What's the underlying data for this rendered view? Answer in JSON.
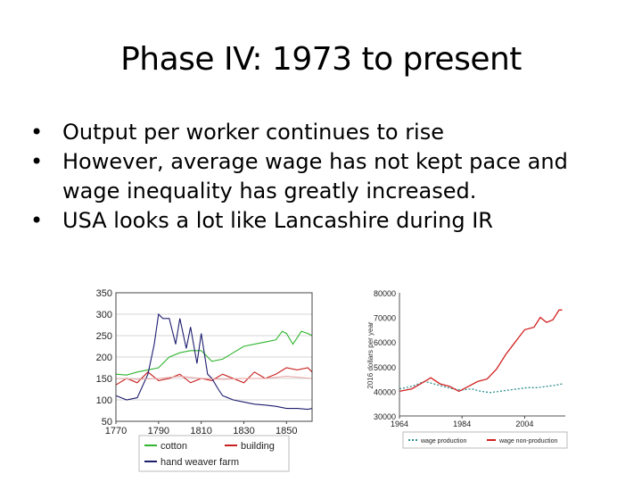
{
  "slide": {
    "title": "Phase IV: 1973 to present",
    "bullets": [
      "Output per worker continues to rise",
      "However, average wage has not kept pace and wage inequality has greatly increased.",
      "USA looks a lot like Lancashire during IR"
    ]
  },
  "chart_data": [
    {
      "type": "line",
      "title": "",
      "xlabel": "",
      "ylabel": "",
      "xlim": [
        1770,
        1862
      ],
      "ylim": [
        50,
        350
      ],
      "x_ticks": [
        "1770",
        "1790",
        "1810",
        "1830",
        "1850"
      ],
      "y_ticks": [
        "50",
        "100",
        "150",
        "200",
        "250",
        "300",
        "350"
      ],
      "grid": true,
      "legend_position": "bottom",
      "series": [
        {
          "name": "cotton",
          "color": "#2fb52f",
          "x": [
            1770,
            1775,
            1780,
            1785,
            1790,
            1795,
            1800,
            1805,
            1810,
            1815,
            1820,
            1825,
            1830,
            1835,
            1840,
            1845,
            1848,
            1850,
            1853,
            1855,
            1857,
            1860,
            1862
          ],
          "y": [
            160,
            158,
            165,
            170,
            175,
            200,
            210,
            215,
            215,
            190,
            195,
            210,
            225,
            230,
            235,
            240,
            260,
            255,
            230,
            245,
            260,
            255,
            250
          ]
        },
        {
          "name": "building",
          "color": "#c8201e",
          "x": [
            1770,
            1775,
            1780,
            1785,
            1790,
            1795,
            1800,
            1805,
            1810,
            1815,
            1820,
            1825,
            1830,
            1835,
            1840,
            1845,
            1850,
            1855,
            1860,
            1862
          ],
          "y": [
            135,
            150,
            140,
            165,
            145,
            150,
            160,
            140,
            150,
            145,
            160,
            150,
            140,
            165,
            150,
            160,
            175,
            170,
            175,
            165
          ]
        },
        {
          "name": "hand weaver farm",
          "color": "#1d1d6f",
          "x": [
            1770,
            1775,
            1780,
            1785,
            1788,
            1790,
            1792,
            1795,
            1798,
            1800,
            1803,
            1805,
            1808,
            1810,
            1813,
            1815,
            1818,
            1820,
            1825,
            1830,
            1835,
            1840,
            1845,
            1850,
            1855,
            1860,
            1862
          ],
          "y": [
            110,
            100,
            105,
            160,
            230,
            300,
            290,
            290,
            230,
            290,
            220,
            270,
            185,
            255,
            160,
            150,
            125,
            110,
            100,
            95,
            90,
            88,
            85,
            80,
            80,
            78,
            80
          ]
        },
        {
          "name": "",
          "color": "#e8a6a6",
          "x": [
            1770,
            1780,
            1790,
            1800,
            1810,
            1820,
            1830,
            1840,
            1850,
            1862
          ],
          "y": [
            150,
            148,
            150,
            155,
            150,
            148,
            150,
            150,
            155,
            150
          ]
        }
      ]
    },
    {
      "type": "line",
      "title": "",
      "xlabel": "",
      "ylabel": "2016 dollars per year",
      "xlim": [
        1964,
        2017
      ],
      "ylim": [
        30000,
        80000
      ],
      "x_ticks": [
        "1964",
        "1984",
        "2004"
      ],
      "y_ticks": [
        "30000",
        "40000",
        "50000",
        "60000",
        "70000",
        "80000"
      ],
      "grid": false,
      "legend_position": "bottom",
      "series": [
        {
          "name": "wage production",
          "color": "#2f8f8f",
          "x": [
            1964,
            1968,
            1972,
            1975,
            1978,
            1981,
            1984,
            1987,
            1990,
            1993,
            1996,
            1999,
            2002,
            2005,
            2008,
            2011,
            2014,
            2016
          ],
          "y": [
            41000,
            42000,
            44000,
            43000,
            42000,
            41000,
            40500,
            41000,
            40000,
            39500,
            40000,
            40500,
            41000,
            41500,
            41500,
            42000,
            42500,
            43000
          ]
        },
        {
          "name": "wage non-production",
          "color": "#d22020",
          "x": [
            1964,
            1968,
            1972,
            1974,
            1977,
            1980,
            1983,
            1986,
            1989,
            1992,
            1995,
            1998,
            2001,
            2004,
            2007,
            2009,
            2011,
            2013,
            2015,
            2016
          ],
          "y": [
            40000,
            41000,
            44000,
            45500,
            43000,
            42000,
            40000,
            42000,
            44000,
            45000,
            49000,
            55000,
            60000,
            65000,
            66000,
            70000,
            68000,
            69000,
            73000,
            73000
          ]
        }
      ]
    }
  ]
}
